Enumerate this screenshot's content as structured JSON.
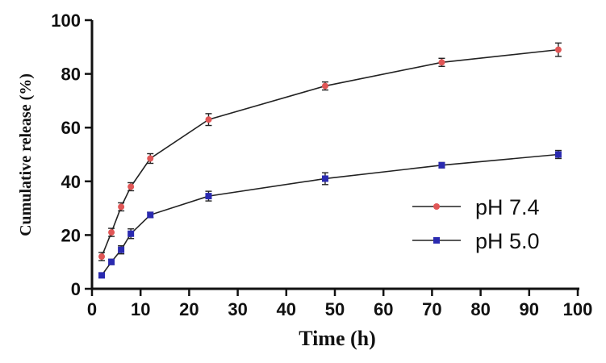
{
  "chart_data": {
    "type": "line",
    "title": "",
    "xlabel": "Time (h)",
    "ylabel": "Cumulative release (%)",
    "xlim": [
      0,
      100
    ],
    "ylim": [
      0,
      100
    ],
    "x_ticks": [
      0,
      10,
      20,
      30,
      40,
      50,
      60,
      70,
      80,
      90,
      100
    ],
    "y_ticks": [
      0,
      20,
      40,
      60,
      80,
      100
    ],
    "grid": false,
    "legend_position": "center-right",
    "series": [
      {
        "name": "pH 7.4",
        "color": "#e05656",
        "marker": "circle",
        "x": [
          2,
          4,
          6,
          8,
          12,
          24,
          48,
          72,
          96
        ],
        "values": [
          12,
          21,
          30.5,
          38,
          48.5,
          63,
          75.5,
          84.3,
          89
        ],
        "errors": [
          1.5,
          1.5,
          1.5,
          1.5,
          1.8,
          2.2,
          1.5,
          1.5,
          2.5
        ]
      },
      {
        "name": "pH 5.0",
        "color": "#2a2ab0",
        "marker": "square",
        "x": [
          2,
          4,
          6,
          8,
          12,
          24,
          48,
          72,
          96
        ],
        "values": [
          5,
          10,
          14.5,
          20.5,
          27.5,
          34.5,
          41,
          46,
          50
        ],
        "errors": [
          0.8,
          1.0,
          1.5,
          1.8,
          1.0,
          1.8,
          2.2,
          1.0,
          1.5
        ]
      }
    ]
  }
}
